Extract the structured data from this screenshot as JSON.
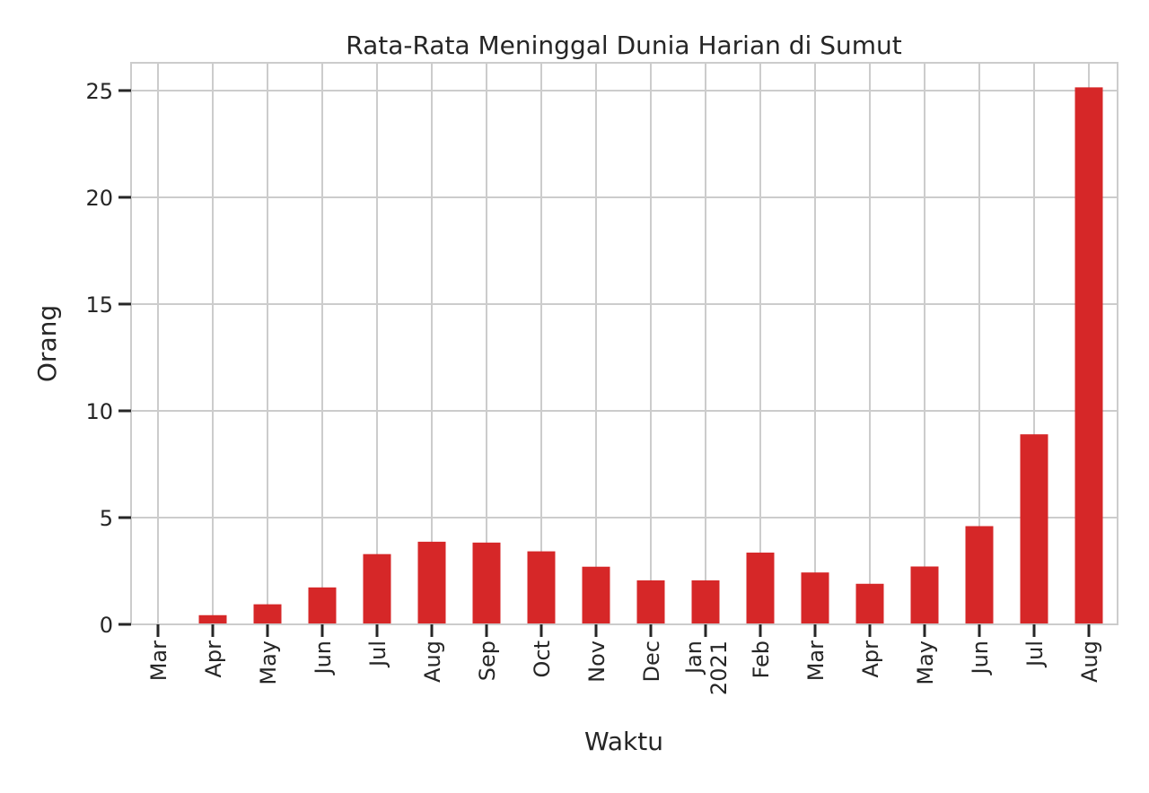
{
  "chart_data": {
    "type": "bar",
    "title": "Rata-Rata Meninggal Dunia Harian di Sumut",
    "xlabel": "Waktu",
    "ylabel": "Orang",
    "categories": [
      "Mar",
      "Apr",
      "May",
      "Jun",
      "Jul",
      "Aug",
      "Sep",
      "Oct",
      "Nov",
      "Dec",
      "Jan\n2021",
      "Feb",
      "Mar",
      "Apr",
      "May",
      "Jun",
      "Jul",
      "Aug"
    ],
    "values": [
      0.0,
      0.43,
      0.94,
      1.73,
      3.29,
      3.87,
      3.83,
      3.42,
      2.7,
      2.06,
      2.06,
      3.36,
      2.43,
      1.9,
      2.71,
      4.6,
      8.9,
      25.15
    ],
    "yticks": [
      0,
      5,
      10,
      15,
      20,
      25
    ],
    "ylim": [
      0,
      26.3
    ],
    "grid": true,
    "colors": {
      "bar": "#d62728",
      "grid": "#cccccc",
      "axis": "#cccccc",
      "text": "#262626"
    }
  }
}
